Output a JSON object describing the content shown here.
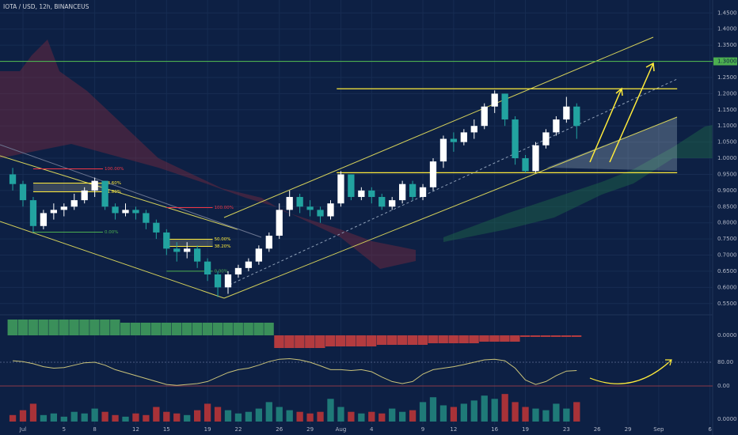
{
  "chart_data": {
    "type": "candlestick",
    "title": "IOTA / USD, 12h, BINANCEUS",
    "x": [
      -1,
      0,
      1,
      2,
      3,
      4,
      5,
      6,
      7,
      8,
      9,
      10,
      11,
      12,
      13,
      14,
      15,
      16,
      17,
      18,
      19,
      20,
      21,
      22,
      23,
      24,
      25,
      26,
      27,
      28,
      29,
      30,
      31,
      32,
      33,
      34,
      35,
      36,
      37,
      38,
      39,
      40,
      41,
      42,
      43,
      44,
      45,
      46,
      47,
      48,
      49,
      50,
      51,
      52,
      53,
      54
    ],
    "open": [
      0.95,
      0.92,
      0.87,
      0.79,
      0.83,
      0.84,
      0.85,
      0.87,
      0.9,
      0.93,
      0.85,
      0.83,
      0.84,
      0.83,
      0.8,
      0.77,
      0.72,
      0.71,
      0.72,
      0.68,
      0.64,
      0.6,
      0.64,
      0.66,
      0.68,
      0.72,
      0.76,
      0.84,
      0.88,
      0.85,
      0.84,
      0.82,
      0.86,
      0.95,
      0.88,
      0.9,
      0.88,
      0.85,
      0.87,
      0.92,
      0.88,
      0.91,
      0.99,
      1.06,
      1.05,
      1.08,
      1.1,
      1.16,
      1.2,
      1.12,
      1.0,
      0.96,
      1.04,
      1.08,
      1.12,
      1.16
    ],
    "high": [
      0.97,
      0.93,
      0.88,
      0.84,
      0.86,
      0.86,
      0.89,
      0.91,
      0.94,
      0.93,
      0.86,
      0.86,
      0.85,
      0.84,
      0.81,
      0.78,
      0.74,
      0.74,
      0.73,
      0.69,
      0.65,
      0.65,
      0.67,
      0.69,
      0.73,
      0.77,
      0.86,
      0.9,
      0.89,
      0.87,
      0.85,
      0.87,
      0.96,
      0.95,
      0.91,
      0.91,
      0.89,
      0.88,
      0.93,
      0.93,
      0.92,
      1.0,
      1.07,
      1.08,
      1.09,
      1.12,
      1.17,
      1.21,
      1.2,
      1.13,
      1.01,
      1.05,
      1.09,
      1.13,
      1.19,
      1.17
    ],
    "low": [
      0.9,
      0.85,
      0.77,
      0.78,
      0.81,
      0.82,
      0.84,
      0.86,
      0.88,
      0.84,
      0.81,
      0.82,
      0.81,
      0.78,
      0.75,
      0.7,
      0.68,
      0.69,
      0.66,
      0.62,
      0.57,
      0.58,
      0.63,
      0.65,
      0.67,
      0.71,
      0.75,
      0.82,
      0.83,
      0.82,
      0.8,
      0.81,
      0.85,
      0.87,
      0.87,
      0.86,
      0.84,
      0.84,
      0.86,
      0.87,
      0.87,
      0.9,
      0.97,
      1.02,
      1.04,
      1.06,
      1.09,
      1.14,
      1.1,
      0.98,
      0.955,
      0.955,
      1.03,
      1.07,
      1.11,
      1.06
    ],
    "close": [
      0.92,
      0.87,
      0.79,
      0.83,
      0.84,
      0.85,
      0.87,
      0.9,
      0.93,
      0.85,
      0.83,
      0.84,
      0.83,
      0.8,
      0.77,
      0.72,
      0.71,
      0.72,
      0.68,
      0.64,
      0.6,
      0.64,
      0.66,
      0.68,
      0.72,
      0.76,
      0.84,
      0.88,
      0.85,
      0.84,
      0.82,
      0.86,
      0.95,
      0.88,
      0.9,
      0.88,
      0.85,
      0.87,
      0.92,
      0.88,
      0.91,
      0.99,
      1.06,
      1.05,
      1.08,
      1.1,
      1.16,
      1.2,
      1.12,
      1.0,
      0.96,
      1.04,
      1.08,
      1.12,
      1.16,
      1.1
    ],
    "up_color": "#ffffff",
    "down_color": "#22a3a0",
    "xlim": [
      -2.24,
      67.26
    ],
    "xticks": [
      {
        "value": 0,
        "label": "Jul"
      },
      {
        "value": 4,
        "label": "5"
      },
      {
        "value": 7,
        "label": "8"
      },
      {
        "value": 11,
        "label": "12"
      },
      {
        "value": 14,
        "label": "15"
      },
      {
        "value": 18,
        "label": "19"
      },
      {
        "value": 21,
        "label": "22"
      },
      {
        "value": 25,
        "label": "26"
      },
      {
        "value": 28,
        "label": "29"
      },
      {
        "value": 31,
        "label": "Aug"
      },
      {
        "value": 34,
        "label": "4"
      },
      {
        "value": 39,
        "label": "9"
      },
      {
        "value": 42,
        "label": "12"
      },
      {
        "value": 46,
        "label": "16"
      },
      {
        "value": 49,
        "label": "19"
      },
      {
        "value": 53,
        "label": "23"
      },
      {
        "value": 56,
        "label": "26"
      },
      {
        "value": 59,
        "label": "29"
      },
      {
        "value": 62,
        "label": "Sep"
      },
      {
        "value": 67,
        "label": "6"
      }
    ],
    "ylim": [
      0.52,
      1.49
    ],
    "yticks": [
      {
        "value": 1.45,
        "label": "1.4500"
      },
      {
        "value": 1.4,
        "label": "1.4000"
      },
      {
        "value": 1.35,
        "label": "1.3500"
      },
      {
        "value": 1.25,
        "label": "1.2500"
      },
      {
        "value": 1.2,
        "label": "1.2000"
      },
      {
        "value": 1.15,
        "label": "1.1500"
      },
      {
        "value": 1.1,
        "label": "1.1000"
      },
      {
        "value": 1.05,
        "label": "1.0500"
      },
      {
        "value": 1.0,
        "label": "1.0000"
      },
      {
        "value": 0.95,
        "label": "0.9500"
      },
      {
        "value": 0.9,
        "label": "0.9000"
      },
      {
        "value": 0.85,
        "label": "0.8500"
      },
      {
        "value": 0.8,
        "label": "0.8000"
      },
      {
        "value": 0.75,
        "label": "0.7500"
      },
      {
        "value": 0.7,
        "label": "0.7000"
      },
      {
        "value": 0.65,
        "label": "0.6500"
      },
      {
        "value": 0.6,
        "label": "0.6000"
      },
      {
        "value": 0.55,
        "label": "0.5500"
      }
    ],
    "grid": true,
    "levels": [
      {
        "price": 1.3,
        "label": "1.3000",
        "color": "#4caf50"
      },
      {
        "price": 1.215,
        "from": 30.6,
        "to": 63.8,
        "color": "#ffeb3b"
      },
      {
        "price": 0.955,
        "from": 30.6,
        "to": 63.8,
        "color": "#ffeb3b"
      }
    ],
    "fibs": [
      {
        "from": 1,
        "to": 7.8,
        "levels": [
          {
            "price": 0.967,
            "label": "100.00%",
            "color": "#f23645"
          },
          {
            "price": 0.923,
            "label": "78.60%",
            "color": "#ffeb3b"
          },
          {
            "price": 0.896,
            "label": "61.80%",
            "color": "#ffeb3b"
          },
          {
            "price": 0.771,
            "label": "0.00%",
            "color": "#4caf50"
          }
        ]
      },
      {
        "from": 14,
        "to": 18.5,
        "levels": [
          {
            "price": 0.847,
            "label": "100.00%",
            "color": "#f23645"
          },
          {
            "price": 0.749,
            "label": "50.00%",
            "color": "#ffeb3b"
          },
          {
            "price": 0.727,
            "label": "38.20%",
            "color": "#ffeb3b"
          },
          {
            "price": 0.65,
            "label": "0.00%",
            "color": "#4caf50"
          }
        ]
      }
    ],
    "squeeze": {
      "values": [
        0.05,
        0.05,
        0.05,
        0.05,
        0.05,
        0.05,
        0.05,
        0.05,
        0.05,
        0.05,
        0.05,
        0.04,
        0.04,
        0.04,
        0.04,
        0.04,
        0.04,
        0.04,
        0.04,
        0.04,
        0.04,
        0.04,
        0.04,
        0.04,
        0.04,
        0.04,
        -0.04,
        -0.04,
        -0.04,
        -0.04,
        -0.04,
        -0.035,
        -0.035,
        -0.035,
        -0.035,
        -0.035,
        -0.03,
        -0.03,
        -0.03,
        -0.03,
        -0.03,
        -0.025,
        -0.025,
        -0.025,
        -0.025,
        -0.025,
        -0.02,
        -0.02,
        -0.02,
        -0.02,
        -0.005,
        -0.005,
        -0.005,
        -0.005,
        -0.005,
        -0.005
      ],
      "ylim": [
        -0.06,
        0.06
      ],
      "yticks": [
        {
          "value": 0,
          "label": "0.0000"
        }
      ],
      "up_color": "#3a8f5a",
      "down_color": "#b33b3f"
    },
    "oscillator": {
      "values": [
        85,
        82,
        75,
        65,
        60,
        62,
        70,
        78,
        80,
        70,
        55,
        45,
        35,
        25,
        15,
        5,
        2,
        5,
        8,
        15,
        30,
        45,
        55,
        60,
        70,
        82,
        90,
        92,
        88,
        80,
        68,
        55,
        55,
        52,
        55,
        48,
        30,
        15,
        8,
        15,
        40,
        55,
        60,
        65,
        72,
        80,
        88,
        90,
        85,
        60,
        20,
        5,
        15,
        35,
        50,
        52
      ],
      "ylim": [
        -10.7,
        101.3
      ],
      "yticks": [
        {
          "value": 80,
          "label": "80.00"
        },
        {
          "value": 0,
          "label": "0.00"
        }
      ],
      "color": "#c9c27a"
    },
    "volume": {
      "values": [
        20,
        35,
        55,
        20,
        25,
        15,
        30,
        25,
        40,
        30,
        20,
        15,
        25,
        20,
        45,
        30,
        25,
        20,
        35,
        55,
        45,
        35,
        25,
        30,
        40,
        60,
        45,
        35,
        30,
        25,
        30,
        70,
        45,
        30,
        25,
        30,
        25,
        40,
        30,
        35,
        60,
        75,
        50,
        45,
        55,
        65,
        80,
        70,
        85,
        60,
        45,
        40,
        35,
        55,
        40,
        60
      ],
      "ylim": [
        0,
        100
      ],
      "yticks": [
        {
          "value": 0,
          "label": "0.0000"
        }
      ],
      "up_color": "#1f7a78",
      "down_color": "#a83238"
    }
  }
}
